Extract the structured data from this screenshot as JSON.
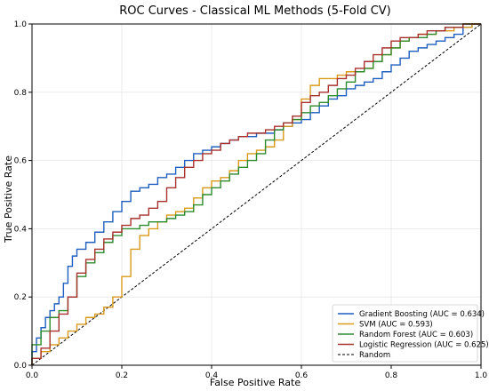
{
  "chart_data": {
    "type": "line",
    "title": "ROC Curves - Classical ML Methods (5-Fold CV)",
    "xlabel": "False Positive Rate",
    "ylabel": "True Positive Rate",
    "xlim": [
      0.0,
      1.0
    ],
    "ylim": [
      0.0,
      1.0
    ],
    "xticks": [
      "0.0",
      "0.2",
      "0.4",
      "0.6",
      "0.8",
      "1.0"
    ],
    "yticks": [
      "0.0",
      "0.2",
      "0.4",
      "0.6",
      "0.8",
      "1.0"
    ],
    "grid": true,
    "legend_position": "bottom-right",
    "series": [
      {
        "name": "Gradient Boosting (AUC = 0.634)",
        "color": "#1f5fbf",
        "dash": "solid",
        "x": [
          0.0,
          0.01,
          0.02,
          0.03,
          0.04,
          0.05,
          0.06,
          0.07,
          0.08,
          0.09,
          0.1,
          0.12,
          0.14,
          0.16,
          0.18,
          0.2,
          0.22,
          0.24,
          0.26,
          0.28,
          0.3,
          0.32,
          0.34,
          0.36,
          0.38,
          0.4,
          0.42,
          0.44,
          0.46,
          0.48,
          0.5,
          0.52,
          0.54,
          0.56,
          0.58,
          0.6,
          0.62,
          0.64,
          0.66,
          0.68,
          0.7,
          0.72,
          0.74,
          0.76,
          0.78,
          0.8,
          0.82,
          0.84,
          0.86,
          0.88,
          0.9,
          0.92,
          0.94,
          0.96,
          0.98,
          1.0
        ],
        "y": [
          0.0,
          0.04,
          0.08,
          0.11,
          0.14,
          0.16,
          0.18,
          0.2,
          0.24,
          0.29,
          0.32,
          0.34,
          0.36,
          0.39,
          0.42,
          0.45,
          0.48,
          0.51,
          0.52,
          0.53,
          0.55,
          0.56,
          0.58,
          0.6,
          0.62,
          0.63,
          0.64,
          0.65,
          0.66,
          0.67,
          0.67,
          0.68,
          0.68,
          0.69,
          0.7,
          0.71,
          0.72,
          0.74,
          0.76,
          0.78,
          0.79,
          0.81,
          0.82,
          0.83,
          0.84,
          0.86,
          0.88,
          0.9,
          0.92,
          0.93,
          0.94,
          0.95,
          0.96,
          0.97,
          0.99,
          1.0
        ]
      },
      {
        "name": "SVM (AUC = 0.593)",
        "color": "#d99a1a",
        "dash": "solid",
        "x": [
          0.0,
          0.02,
          0.04,
          0.06,
          0.08,
          0.1,
          0.12,
          0.14,
          0.16,
          0.18,
          0.2,
          0.22,
          0.24,
          0.26,
          0.28,
          0.3,
          0.32,
          0.34,
          0.36,
          0.38,
          0.4,
          0.42,
          0.44,
          0.46,
          0.48,
          0.5,
          0.52,
          0.54,
          0.56,
          0.58,
          0.6,
          0.62,
          0.64,
          0.66,
          0.68,
          0.7,
          0.72,
          0.74,
          0.76,
          0.78,
          0.8,
          0.82,
          0.84,
          0.86,
          0.88,
          0.9,
          0.92,
          0.94,
          0.96,
          0.98,
          1.0
        ],
        "y": [
          0.0,
          0.02,
          0.04,
          0.06,
          0.08,
          0.1,
          0.12,
          0.14,
          0.15,
          0.17,
          0.2,
          0.26,
          0.34,
          0.38,
          0.4,
          0.42,
          0.44,
          0.45,
          0.46,
          0.49,
          0.52,
          0.54,
          0.55,
          0.57,
          0.6,
          0.62,
          0.63,
          0.64,
          0.66,
          0.7,
          0.72,
          0.78,
          0.82,
          0.84,
          0.84,
          0.85,
          0.86,
          0.86,
          0.87,
          0.89,
          0.91,
          0.93,
          0.95,
          0.96,
          0.97,
          0.97,
          0.98,
          0.98,
          0.99,
          0.99,
          1.0
        ]
      },
      {
        "name": "Random Forest (AUC = 0.603)",
        "color": "#2e8b2e",
        "dash": "solid",
        "x": [
          0.0,
          0.02,
          0.04,
          0.06,
          0.08,
          0.1,
          0.12,
          0.14,
          0.16,
          0.18,
          0.2,
          0.22,
          0.24,
          0.26,
          0.28,
          0.3,
          0.32,
          0.34,
          0.36,
          0.38,
          0.4,
          0.42,
          0.44,
          0.46,
          0.48,
          0.5,
          0.52,
          0.54,
          0.56,
          0.58,
          0.6,
          0.62,
          0.64,
          0.66,
          0.68,
          0.7,
          0.72,
          0.74,
          0.76,
          0.78,
          0.8,
          0.82,
          0.84,
          0.86,
          0.88,
          0.9,
          0.92,
          0.94,
          0.96,
          0.98,
          1.0
        ],
        "y": [
          0.0,
          0.06,
          0.1,
          0.14,
          0.16,
          0.2,
          0.26,
          0.3,
          0.33,
          0.36,
          0.38,
          0.4,
          0.4,
          0.41,
          0.42,
          0.42,
          0.43,
          0.44,
          0.45,
          0.47,
          0.5,
          0.52,
          0.54,
          0.56,
          0.58,
          0.6,
          0.62,
          0.66,
          0.69,
          0.71,
          0.72,
          0.74,
          0.76,
          0.77,
          0.79,
          0.81,
          0.83,
          0.86,
          0.87,
          0.89,
          0.91,
          0.93,
          0.95,
          0.96,
          0.96,
          0.97,
          0.98,
          0.99,
          0.99,
          1.0,
          1.0
        ]
      },
      {
        "name": "Logistic Regression (AUC = 0.625)",
        "color": "#a8322e",
        "dash": "solid",
        "x": [
          0.0,
          0.02,
          0.04,
          0.06,
          0.08,
          0.1,
          0.12,
          0.14,
          0.16,
          0.18,
          0.2,
          0.22,
          0.24,
          0.26,
          0.28,
          0.3,
          0.32,
          0.34,
          0.36,
          0.38,
          0.4,
          0.42,
          0.44,
          0.46,
          0.48,
          0.5,
          0.52,
          0.54,
          0.56,
          0.58,
          0.6,
          0.62,
          0.64,
          0.66,
          0.68,
          0.7,
          0.72,
          0.74,
          0.76,
          0.78,
          0.8,
          0.82,
          0.84,
          0.86,
          0.88,
          0.9,
          0.92,
          0.94,
          0.96,
          0.98,
          1.0
        ],
        "y": [
          0.0,
          0.02,
          0.05,
          0.1,
          0.15,
          0.2,
          0.27,
          0.31,
          0.34,
          0.37,
          0.39,
          0.41,
          0.43,
          0.44,
          0.46,
          0.48,
          0.52,
          0.55,
          0.58,
          0.6,
          0.62,
          0.63,
          0.65,
          0.66,
          0.67,
          0.68,
          0.68,
          0.69,
          0.7,
          0.71,
          0.73,
          0.77,
          0.79,
          0.8,
          0.82,
          0.84,
          0.85,
          0.87,
          0.89,
          0.91,
          0.93,
          0.95,
          0.96,
          0.96,
          0.97,
          0.98,
          0.98,
          0.99,
          0.99,
          1.0,
          1.0
        ]
      },
      {
        "name": "Random",
        "color": "#000000",
        "dash": "dashed",
        "x": [
          0.0,
          1.0
        ],
        "y": [
          0.0,
          1.0
        ]
      }
    ]
  }
}
